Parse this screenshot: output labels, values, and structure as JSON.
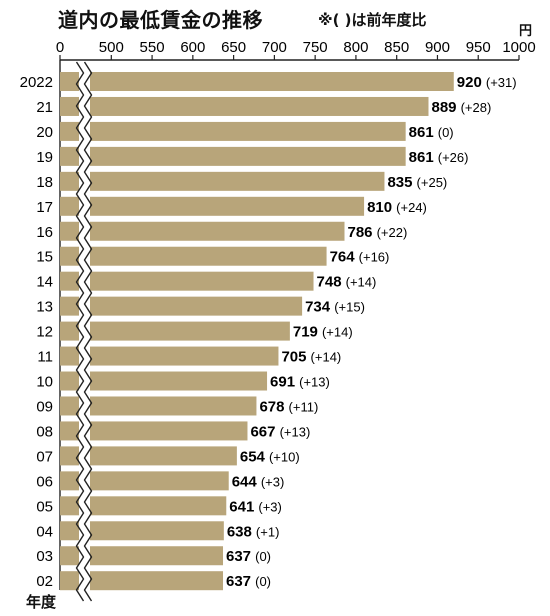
{
  "chart_data": {
    "type": "bar",
    "orientation": "horizontal",
    "title": "道内の最低賃金の推移",
    "subtitle": "※( )は前年度比",
    "unit": "円",
    "xlabel": "年度",
    "x_ticks": [
      "0",
      "500",
      "550",
      "600",
      "650",
      "700",
      "750",
      "800",
      "850",
      "900",
      "950",
      "1000"
    ],
    "xlim": [
      0,
      1000
    ],
    "axis_break": [
      0,
      480
    ],
    "grid": false,
    "bar_color": "#b8a57a",
    "categories": [
      "2022",
      "21",
      "20",
      "19",
      "18",
      "17",
      "16",
      "15",
      "14",
      "13",
      "12",
      "11",
      "10",
      "09",
      "08",
      "07",
      "06",
      "05",
      "04",
      "03",
      "02"
    ],
    "values": [
      920,
      889,
      861,
      861,
      835,
      810,
      786,
      764,
      748,
      734,
      719,
      705,
      691,
      678,
      667,
      654,
      644,
      641,
      638,
      637,
      637
    ],
    "changes": [
      "(+31)",
      "(+28)",
      "(0)",
      "(+26)",
      "(+25)",
      "(+24)",
      "(+22)",
      "(+16)",
      "(+14)",
      "(+15)",
      "(+14)",
      "(+14)",
      "(+13)",
      "(+11)",
      "(+13)",
      "(+10)",
      "(+3)",
      "(+3)",
      "(+1)",
      "(0)",
      "(0)"
    ]
  }
}
